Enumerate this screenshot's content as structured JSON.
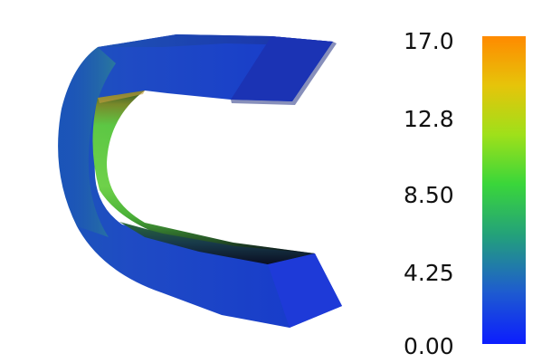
{
  "scalar_bar": {
    "ticks": [
      "17.0",
      "12.8",
      "8.50",
      "4.25",
      "0.00"
    ],
    "range": [
      0.0,
      17.0
    ],
    "colormap": [
      "#0c1dff",
      "#1e5ccf",
      "#23a07c",
      "#3ad63a",
      "#9fe01a",
      "#e6c40a",
      "#ff8a00"
    ]
  },
  "scene": {
    "object": "c-shaped-magnet-core",
    "background": "#ffffff",
    "outer_color": "#1638c8",
    "inner_color": "#6ed84a"
  }
}
